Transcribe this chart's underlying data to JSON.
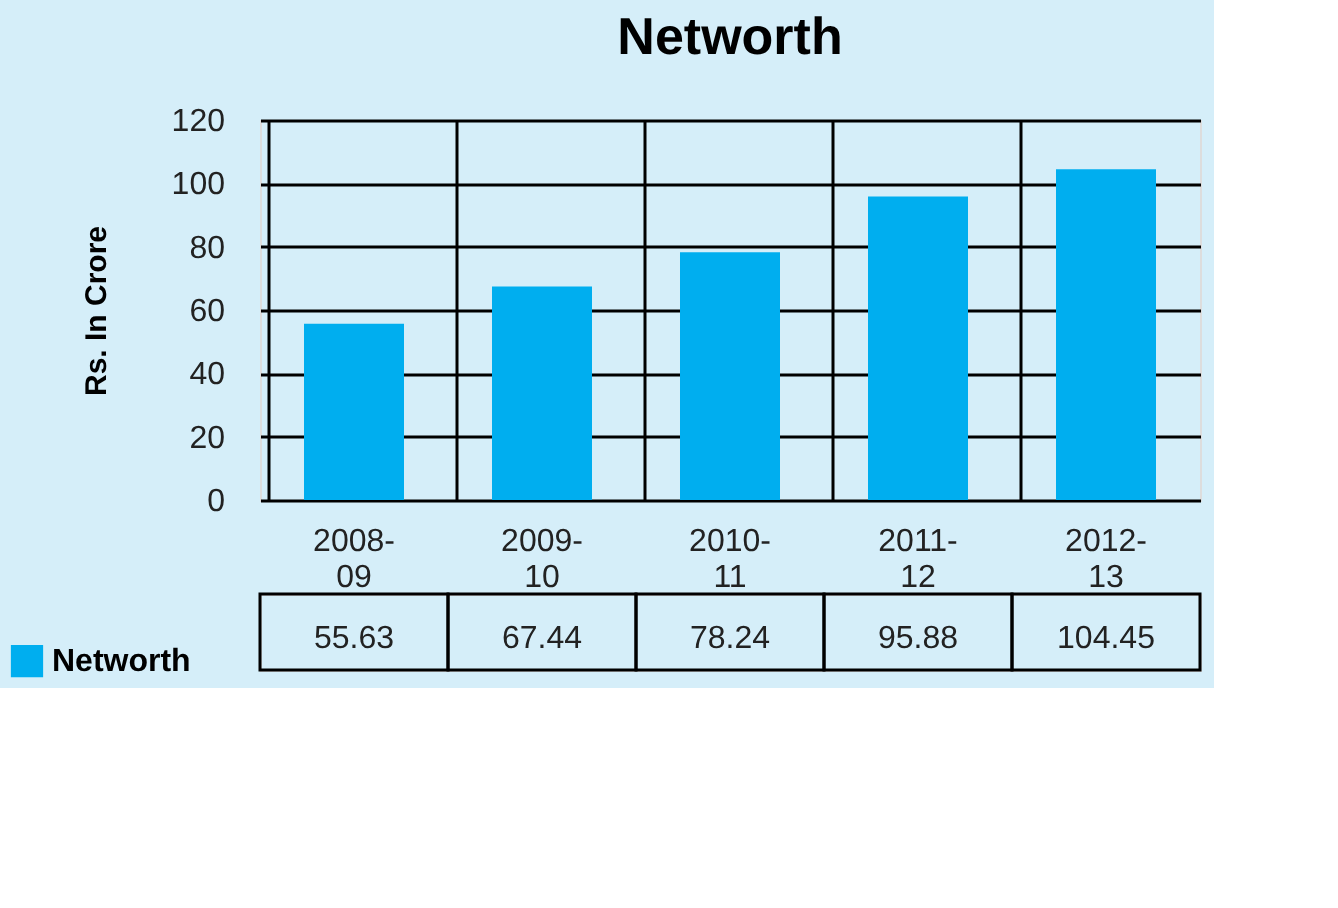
{
  "chart_data": {
    "type": "bar",
    "title": "Networth",
    "ylabel": "Rs. In Crore",
    "categories": [
      "2008-09",
      "2009-10",
      "2010-11",
      "2011-12",
      "2012-13"
    ],
    "series": [
      {
        "name": "Networth",
        "color": "#00aeef",
        "values": [
          55.63,
          67.44,
          78.24,
          95.88,
          104.45
        ]
      }
    ],
    "ylim": [
      0,
      120
    ],
    "yticks": [
      0,
      20,
      40,
      60,
      80,
      100,
      120
    ],
    "grid": "y",
    "legend": "bottom left",
    "data_labels": true
  }
}
